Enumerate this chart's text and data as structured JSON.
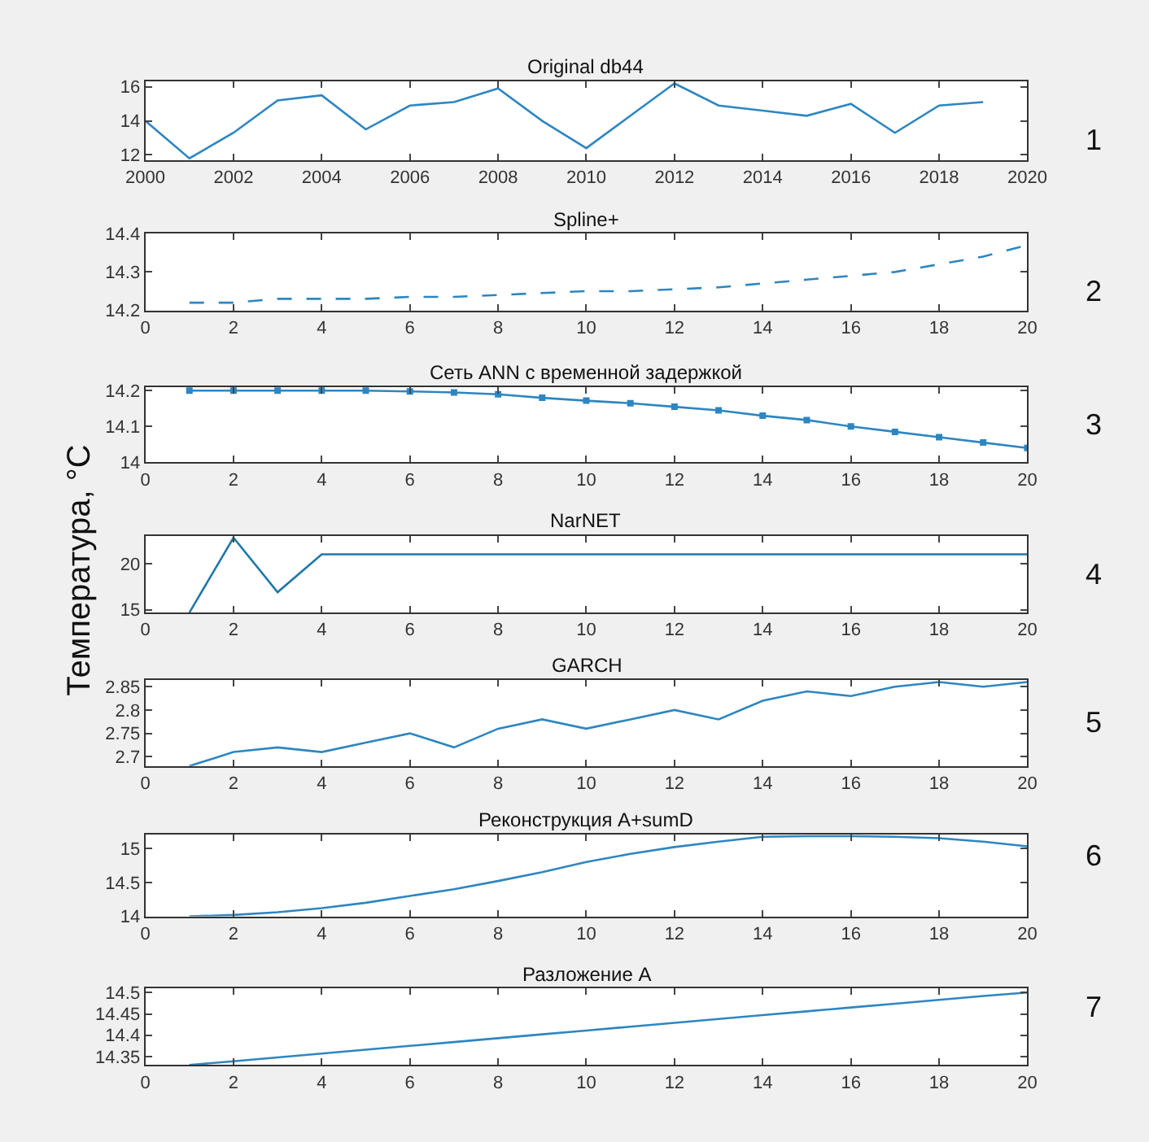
{
  "chart_data": [
    {
      "type": "line",
      "title": "Original db44",
      "x": [
        2000,
        2001,
        2002,
        2003,
        2004,
        2005,
        2006,
        2007,
        2008,
        2009,
        2010,
        2011,
        2012,
        2013,
        2014,
        2015,
        2016,
        2017,
        2018,
        2019
      ],
      "values": [
        14,
        11.8,
        13.3,
        15.2,
        15.5,
        13.5,
        14.9,
        15.1,
        15.9,
        14,
        12.4,
        14.3,
        16.2,
        14.9,
        14.6,
        14.3,
        15,
        13.3,
        14.9,
        15.1
      ],
      "color": "#2e86c1",
      "xlim": [
        2000,
        2020
      ],
      "xticks": [
        2000,
        2002,
        2004,
        2006,
        2008,
        2010,
        2012,
        2014,
        2016,
        2018,
        2020
      ],
      "ylim": [
        11.7,
        16.3
      ],
      "yticks": [
        12,
        14,
        16
      ],
      "grid": false,
      "annotations": [
        "1"
      ]
    },
    {
      "type": "line",
      "title": "Spline+",
      "x": [
        1,
        2,
        3,
        4,
        5,
        6,
        7,
        8,
        9,
        10,
        11,
        12,
        13,
        14,
        15,
        16,
        17,
        18,
        19,
        20
      ],
      "values": [
        14.22,
        14.22,
        14.23,
        14.23,
        14.23,
        14.235,
        14.235,
        14.24,
        14.245,
        14.25,
        14.25,
        14.255,
        14.26,
        14.27,
        14.28,
        14.29,
        14.3,
        14.32,
        14.34,
        14.37
      ],
      "color": "#2e86c1",
      "line_style": "dashed",
      "xlim": [
        0,
        20
      ],
      "xticks": [
        0,
        2,
        4,
        6,
        8,
        10,
        12,
        14,
        16,
        18,
        20
      ],
      "ylim": [
        14.2,
        14.4
      ],
      "yticks": [
        14.2,
        14.3,
        14.4
      ],
      "grid": false,
      "annotations": [
        "2"
      ]
    },
    {
      "type": "line",
      "title": "Сеть ANN с временной задержкой",
      "x": [
        1,
        2,
        3,
        4,
        5,
        6,
        7,
        8,
        9,
        10,
        11,
        12,
        13,
        14,
        15,
        16,
        17,
        18,
        19,
        20
      ],
      "values": [
        14.2,
        14.2,
        14.2,
        14.2,
        14.2,
        14.198,
        14.195,
        14.19,
        14.18,
        14.172,
        14.165,
        14.155,
        14.145,
        14.13,
        14.118,
        14.1,
        14.085,
        14.07,
        14.055,
        14.04
      ],
      "color": "#2e86c1",
      "marker": "square",
      "xlim": [
        0,
        20
      ],
      "xticks": [
        0,
        2,
        4,
        6,
        8,
        10,
        12,
        14,
        16,
        18,
        20
      ],
      "ylim": [
        14,
        14.21
      ],
      "yticks": [
        14,
        14.1,
        14.2
      ],
      "grid": false,
      "annotations": [
        "3"
      ]
    },
    {
      "type": "line",
      "title": "NarNET",
      "ylabel": "Температура, °C",
      "x": [
        1,
        2,
        3,
        4,
        5,
        6,
        7,
        8,
        9,
        10,
        11,
        12,
        13,
        14,
        15,
        16,
        17,
        18,
        19,
        20
      ],
      "values": [
        14.7,
        22.8,
        16.9,
        21,
        21,
        21,
        21,
        21,
        21,
        21,
        21,
        21,
        21,
        21,
        21,
        21,
        21,
        21,
        21,
        21
      ],
      "color": "#1f78a8",
      "xlim": [
        0,
        20
      ],
      "xticks": [
        0,
        2,
        4,
        6,
        8,
        10,
        12,
        14,
        16,
        18,
        20
      ],
      "ylim": [
        14.7,
        23
      ],
      "yticks": [
        15,
        20
      ],
      "grid": false,
      "annotations": [
        "4"
      ]
    },
    {
      "type": "line",
      "title": "GARCH",
      "x": [
        1,
        2,
        3,
        4,
        5,
        6,
        7,
        8,
        9,
        10,
        11,
        12,
        13,
        14,
        15,
        16,
        17,
        18,
        19,
        20
      ],
      "values": [
        2.68,
        2.71,
        2.72,
        2.71,
        2.73,
        2.75,
        2.72,
        2.76,
        2.78,
        2.76,
        2.78,
        2.8,
        2.78,
        2.82,
        2.84,
        2.83,
        2.85,
        2.86,
        2.85,
        2.86
      ],
      "color": "#2e86c1",
      "xlim": [
        0,
        20
      ],
      "xticks": [
        0,
        2,
        4,
        6,
        8,
        10,
        12,
        14,
        16,
        18,
        20
      ],
      "ylim": [
        2.68,
        2.865
      ],
      "yticks": [
        2.7,
        2.75,
        2.8,
        2.85
      ],
      "grid": false,
      "annotations": [
        "5"
      ]
    },
    {
      "type": "line",
      "title": "Реконструкция A+sumD",
      "x": [
        1,
        2,
        3,
        4,
        5,
        6,
        7,
        8,
        9,
        10,
        11,
        12,
        13,
        14,
        15,
        16,
        17,
        18,
        19,
        20
      ],
      "values": [
        14,
        14.02,
        14.06,
        14.12,
        14.2,
        14.3,
        14.4,
        14.52,
        14.65,
        14.8,
        14.92,
        15.02,
        15.1,
        15.17,
        15.18,
        15.18,
        15.17,
        15.15,
        15.1,
        15.03
      ],
      "color": "#2e86c1",
      "xlim": [
        0,
        20
      ],
      "xticks": [
        0,
        2,
        4,
        6,
        8,
        10,
        12,
        14,
        16,
        18,
        20
      ],
      "ylim": [
        14,
        15.2
      ],
      "yticks": [
        14,
        14.5,
        15
      ],
      "grid": false,
      "annotations": [
        "6"
      ]
    },
    {
      "type": "line",
      "title": "Разложение A",
      "x": [
        1,
        2,
        3,
        4,
        5,
        6,
        7,
        8,
        9,
        10,
        11,
        12,
        13,
        14,
        15,
        16,
        17,
        18,
        19,
        20
      ],
      "values": [
        14.33,
        14.339,
        14.348,
        14.357,
        14.366,
        14.375,
        14.384,
        14.393,
        14.402,
        14.411,
        14.42,
        14.429,
        14.438,
        14.447,
        14.456,
        14.465,
        14.474,
        14.483,
        14.492,
        14.5
      ],
      "color": "#2e86c1",
      "xlim": [
        0,
        20
      ],
      "xticks": [
        0,
        2,
        4,
        6,
        8,
        10,
        12,
        14,
        16,
        18,
        20
      ],
      "ylim": [
        14.33,
        14.51
      ],
      "yticks": [
        14.35,
        14.4,
        14.45,
        14.5
      ],
      "grid": false,
      "annotations": [
        "7"
      ]
    }
  ]
}
